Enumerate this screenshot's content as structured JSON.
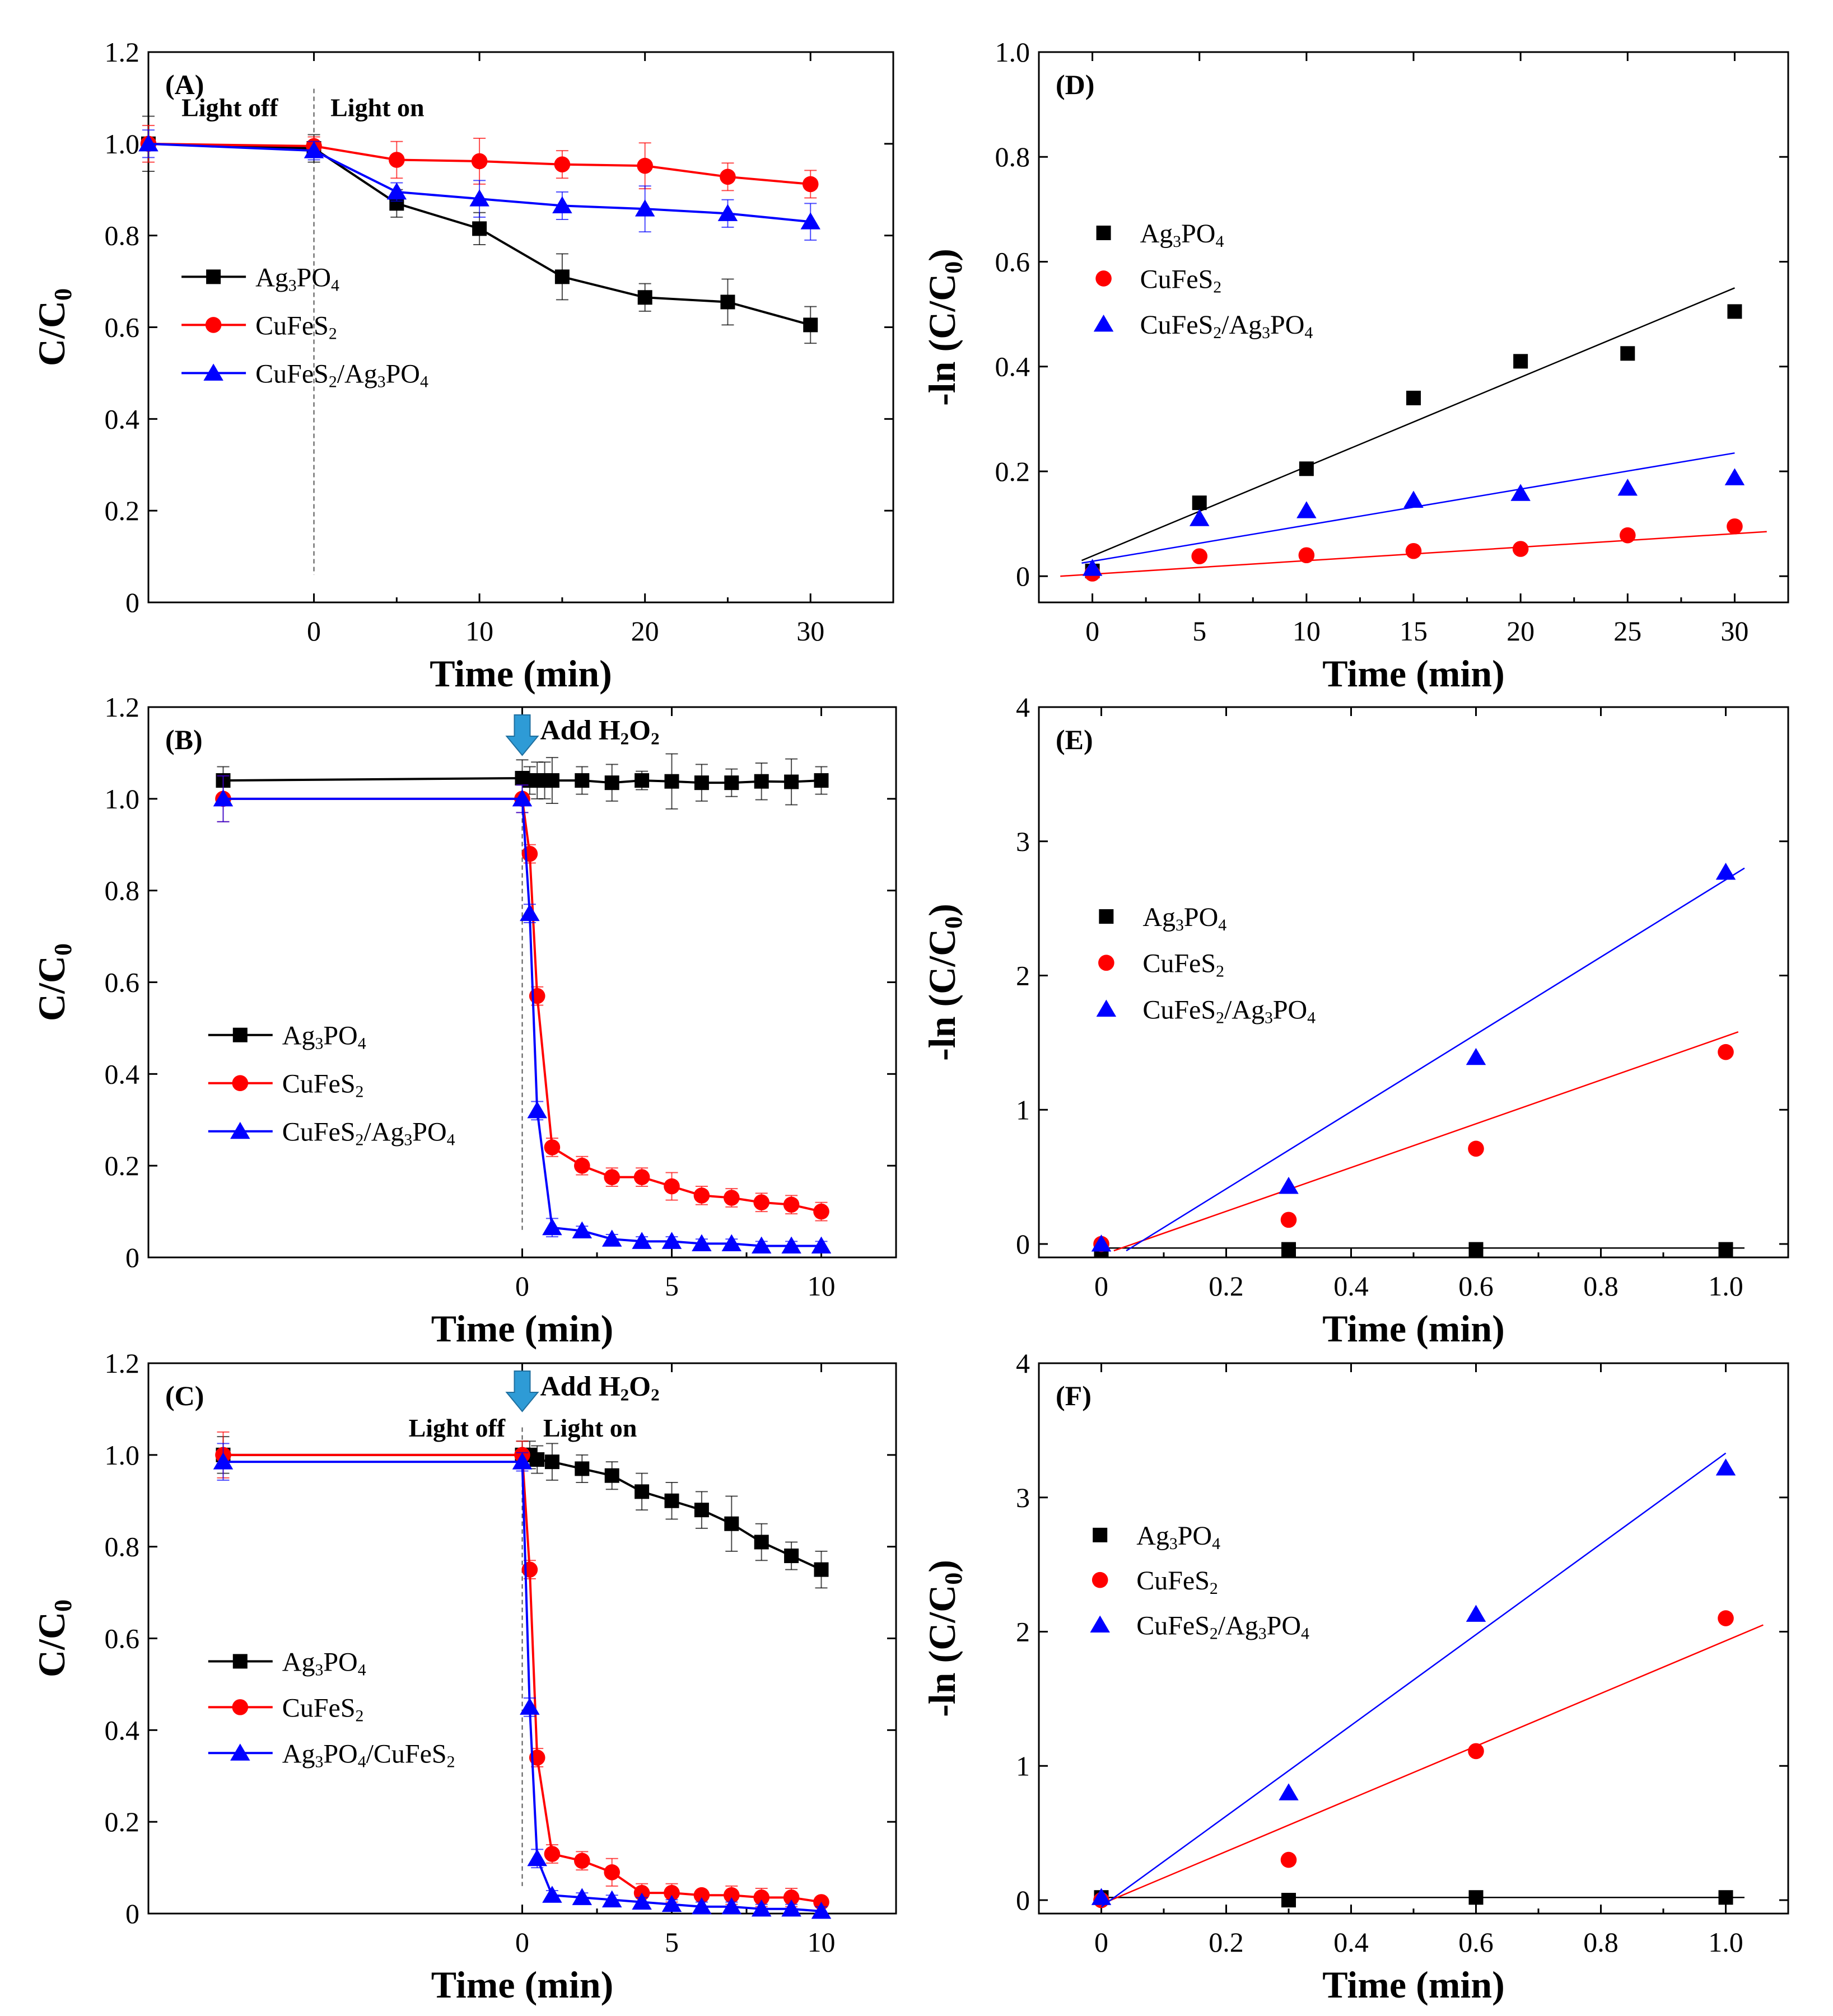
{
  "figure": {
    "description": "Six-panel kinetics figure"
  },
  "chart_data": [
    {
      "id": "A",
      "tag": "(A)",
      "type": "line",
      "xlabel": "Time (min)",
      "ylabel": "C/C0",
      "xlim": [
        -10,
        35
      ],
      "ylim": [
        0,
        1.2
      ],
      "xticks": [
        0,
        10,
        20,
        30
      ],
      "yticks": [
        0,
        0.2,
        0.4,
        0.6,
        0.8,
        1.0,
        1.2
      ],
      "ytick_labels": [
        "0",
        "0.2",
        "0.4",
        "0.6",
        "0.8",
        "1.0",
        "1.2"
      ],
      "divider_x": 0,
      "annotations": [
        {
          "text": "Light off",
          "x": -8,
          "y": 1.06
        },
        {
          "text": "Light on",
          "x": 1,
          "y": 1.06
        }
      ],
      "legend": {
        "position": "middle-left",
        "x": -8,
        "y": 0.71,
        "dy": 0.105
      },
      "series": [
        {
          "name": "Ag3PO4",
          "legend_label": [
            "Ag",
            "3",
            "PO",
            "4"
          ],
          "color": "#000000",
          "marker": "square",
          "x": [
            -10,
            0,
            5,
            10,
            15,
            20,
            25,
            30
          ],
          "y": [
            1.0,
            0.99,
            0.87,
            0.815,
            0.71,
            0.665,
            0.655,
            0.605
          ],
          "err": [
            0.06,
            0.03,
            0.03,
            0.035,
            0.05,
            0.03,
            0.05,
            0.04
          ]
        },
        {
          "name": "CuFeS2",
          "legend_label": [
            "CuFeS",
            "2",
            "",
            ""
          ],
          "color": "#ff0000",
          "marker": "circle",
          "x": [
            -10,
            0,
            5,
            10,
            15,
            20,
            25,
            30
          ],
          "y": [
            1.0,
            0.995,
            0.965,
            0.962,
            0.955,
            0.952,
            0.928,
            0.912
          ],
          "err": [
            0.04,
            0.02,
            0.04,
            0.05,
            0.03,
            0.05,
            0.03,
            0.03
          ]
        },
        {
          "name": "CuFeS2/Ag3PO4",
          "legend_label": [
            "CuFeS",
            "2",
            "/Ag",
            "3",
            "PO",
            "4"
          ],
          "color": "#0000ff",
          "marker": "triangle",
          "x": [
            -10,
            0,
            5,
            10,
            15,
            20,
            25,
            30
          ],
          "y": [
            1.0,
            0.985,
            0.895,
            0.88,
            0.865,
            0.858,
            0.848,
            0.83
          ],
          "err": [
            0.03,
            0.02,
            0.02,
            0.04,
            0.03,
            0.05,
            0.03,
            0.04
          ]
        }
      ]
    },
    {
      "id": "D",
      "tag": "(D)",
      "type": "scatter",
      "xlabel": "Time (min)",
      "ylabel": "-ln (C/C0)",
      "xlim": [
        -2.5,
        32.5
      ],
      "ylim": [
        -0.05,
        1.0
      ],
      "xticks": [
        0,
        5,
        10,
        15,
        20,
        25,
        30
      ],
      "yticks": [
        0,
        0.2,
        0.4,
        0.6,
        0.8,
        1.0
      ],
      "ytick_labels": [
        "0",
        "0.2",
        "0.4",
        "0.6",
        "0.8",
        "1.0"
      ],
      "legend": {
        "position": "top-left",
        "x": 0,
        "y": 0.655,
        "dy": 0.087
      },
      "series": [
        {
          "name": "Ag3PO4",
          "legend_label": [
            "Ag",
            "3",
            "PO",
            "4"
          ],
          "color": "#000000",
          "marker": "square",
          "x": [
            0,
            5,
            10,
            15,
            20,
            25,
            30
          ],
          "y": [
            0.01,
            0.14,
            0.205,
            0.34,
            0.41,
            0.425,
            0.505
          ],
          "fit": [
            [
              -0.5,
              0.03
            ],
            [
              30,
              0.55
            ]
          ]
        },
        {
          "name": "CuFeS2",
          "legend_label": [
            "CuFeS",
            "2",
            "",
            ""
          ],
          "color": "#ff0000",
          "marker": "circle",
          "x": [
            0,
            5,
            10,
            15,
            20,
            25,
            30
          ],
          "y": [
            0.005,
            0.038,
            0.04,
            0.048,
            0.052,
            0.078,
            0.095
          ],
          "fit": [
            [
              -1.5,
              0.0
            ],
            [
              31.5,
              0.085
            ]
          ]
        },
        {
          "name": "CuFeS2/Ag3PO4",
          "legend_label": [
            "CuFeS",
            "2",
            "/Ag",
            "3",
            "PO",
            "4"
          ],
          "color": "#0000ff",
          "marker": "triangle",
          "x": [
            0,
            5,
            10,
            15,
            20,
            25,
            30
          ],
          "y": [
            0.015,
            0.11,
            0.125,
            0.145,
            0.158,
            0.168,
            0.188
          ],
          "fit": [
            [
              -0.5,
              0.025
            ],
            [
              30,
              0.235
            ]
          ]
        }
      ]
    },
    {
      "id": "B",
      "tag": "(B)",
      "type": "line",
      "xlabel": "Time (min)",
      "ylabel": "C/C0",
      "xlim": [
        -12.5,
        12.5
      ],
      "ylim": [
        0,
        1.2
      ],
      "xticks": [
        0,
        5,
        10
      ],
      "yticks": [
        0,
        0.2,
        0.4,
        0.6,
        0.8,
        1.0,
        1.2
      ],
      "ytick_labels": [
        "0",
        "0.2",
        "0.4",
        "0.6",
        "0.8",
        "1.0",
        "1.2"
      ],
      "divider_x": 0,
      "arrow_x": 0,
      "annotations": [
        {
          "text_parts": [
            "Add H",
            "2",
            "O",
            "2"
          ],
          "x": 0.6,
          "y": 1.13
        }
      ],
      "legend": {
        "position": "middle-left",
        "x": -10.5,
        "y": 0.485,
        "dy": 0.105
      },
      "series": [
        {
          "name": "Ag3PO4",
          "legend_label": [
            "Ag",
            "3",
            "PO",
            "4"
          ],
          "color": "#000000",
          "marker": "square",
          "x": [
            -10,
            0,
            0.25,
            0.5,
            0.75,
            1,
            2,
            3,
            4,
            5,
            6,
            7,
            8,
            9,
            10
          ],
          "y": [
            1.04,
            1.045,
            1.04,
            1.04,
            1.04,
            1.04,
            1.04,
            1.035,
            1.04,
            1.038,
            1.035,
            1.035,
            1.038,
            1.037,
            1.04
          ],
          "err": [
            0.03,
            0.04,
            0.03,
            0.04,
            0.04,
            0.05,
            0.03,
            0.04,
            0.02,
            0.06,
            0.04,
            0.03,
            0.04,
            0.05,
            0.03
          ]
        },
        {
          "name": "CuFeS2",
          "legend_label": [
            "CuFeS",
            "2",
            "",
            ""
          ],
          "color": "#ff0000",
          "marker": "circle",
          "x": [
            -10,
            0,
            0.25,
            0.5,
            1,
            2,
            3,
            4,
            5,
            6,
            7,
            8,
            9,
            10
          ],
          "y": [
            1.0,
            1.0,
            0.88,
            0.57,
            0.24,
            0.2,
            0.175,
            0.175,
            0.155,
            0.135,
            0.13,
            0.12,
            0.115,
            0.1
          ],
          "err": [
            0.05,
            0.03,
            0.02,
            0.02,
            0.02,
            0.02,
            0.02,
            0.02,
            0.03,
            0.02,
            0.02,
            0.02,
            0.02,
            0.02
          ]
        },
        {
          "name": "CuFeS2/Ag3PO4",
          "legend_label": [
            "CuFeS",
            "2",
            "/Ag",
            "3",
            "PO",
            "4"
          ],
          "color": "#0000ff",
          "marker": "triangle",
          "x": [
            -10,
            0,
            0.25,
            0.5,
            1,
            2,
            3,
            4,
            5,
            6,
            7,
            8,
            9,
            10
          ],
          "y": [
            1.0,
            1.0,
            0.75,
            0.32,
            0.065,
            0.058,
            0.04,
            0.035,
            0.035,
            0.03,
            0.03,
            0.025,
            0.025,
            0.025
          ],
          "err": [
            0.05,
            0.03,
            0.02,
            0.02,
            0.02,
            0.01,
            0.01,
            0.01,
            0.01,
            0.01,
            0.01,
            0.01,
            0.01,
            0.01
          ]
        }
      ]
    },
    {
      "id": "E",
      "tag": "(E)",
      "type": "scatter",
      "xlabel": "Time (min)",
      "ylabel": "-ln (C/C0)",
      "xlim": [
        -0.1,
        1.1
      ],
      "ylim": [
        -0.1,
        4.0
      ],
      "xticks": [
        0,
        0.2,
        0.4,
        0.6,
        0.8,
        1.0
      ],
      "yticks": [
        0,
        1,
        2,
        3,
        4
      ],
      "xtick_labels": [
        "0",
        "0.2",
        "0.4",
        "0.6",
        "0.8",
        "1.0"
      ],
      "ytick_labels": [
        "0",
        "1",
        "2",
        "3",
        "4"
      ],
      "legend": {
        "position": "middle-left",
        "x": -0.01,
        "y": 2.44,
        "dy": 0.345
      },
      "series": [
        {
          "name": "Ag3PO4",
          "legend_label": [
            "Ag",
            "3",
            "PO",
            "4"
          ],
          "color": "#000000",
          "marker": "square",
          "x": [
            0,
            0.3,
            0.6,
            1.0
          ],
          "y": [
            -0.04,
            -0.04,
            -0.04,
            -0.04
          ],
          "fit": [
            [
              0,
              -0.03
            ],
            [
              1.03,
              -0.03
            ]
          ]
        },
        {
          "name": "CuFeS2",
          "legend_label": [
            "CuFeS",
            "2",
            "",
            ""
          ],
          "color": "#ff0000",
          "marker": "circle",
          "x": [
            0,
            0.3,
            0.6,
            1.0
          ],
          "y": [
            0.0,
            0.18,
            0.71,
            1.43
          ],
          "fit": [
            [
              0.02,
              -0.05
            ],
            [
              1.02,
              1.58
            ]
          ]
        },
        {
          "name": "CuFeS2/Ag3PO4",
          "legend_label": [
            "CuFeS",
            "2",
            "/Ag",
            "3",
            "PO",
            "4"
          ],
          "color": "#0000ff",
          "marker": "triangle",
          "x": [
            0,
            0.3,
            0.6,
            1.0
          ],
          "y": [
            0.0,
            0.43,
            1.39,
            2.77
          ],
          "fit": [
            [
              0.04,
              -0.05
            ],
            [
              1.03,
              2.8
            ]
          ]
        }
      ]
    },
    {
      "id": "C",
      "tag": "(C)",
      "type": "line",
      "xlabel": "Time (min)",
      "ylabel": "C/C0",
      "xlim": [
        -12.5,
        12.5
      ],
      "ylim": [
        0,
        1.2
      ],
      "xticks": [
        0,
        5,
        10
      ],
      "yticks": [
        0,
        0.2,
        0.4,
        0.6,
        0.8,
        1.0,
        1.2
      ],
      "ytick_labels": [
        "0",
        "0.2",
        "0.4",
        "0.6",
        "0.8",
        "1.0",
        "1.2"
      ],
      "divider_x": 0,
      "arrow_x": 0,
      "annotations": [
        {
          "text_parts": [
            "Add H",
            "2",
            "O",
            "2"
          ],
          "x": 0.6,
          "y": 1.13
        },
        {
          "text": "Light off",
          "x": -3.8,
          "y": 1.04
        },
        {
          "text": "Light on",
          "x": 0.7,
          "y": 1.04
        }
      ],
      "legend": {
        "position": "middle-left",
        "x": -10.5,
        "y": 0.55,
        "dy": 0.1
      },
      "series": [
        {
          "name": "Ag3PO4",
          "legend_label": [
            "Ag",
            "3",
            "PO",
            "4"
          ],
          "color": "#000000",
          "marker": "square",
          "x": [
            -10,
            0,
            0.25,
            0.5,
            1,
            2,
            3,
            4,
            5,
            6,
            7,
            8,
            9,
            10
          ],
          "y": [
            1.0,
            1.0,
            1.0,
            0.99,
            0.985,
            0.97,
            0.955,
            0.92,
            0.9,
            0.88,
            0.85,
            0.81,
            0.78,
            0.75
          ],
          "err": [
            0.04,
            0.03,
            0.03,
            0.03,
            0.04,
            0.03,
            0.03,
            0.04,
            0.04,
            0.04,
            0.06,
            0.04,
            0.03,
            0.04
          ]
        },
        {
          "name": "CuFeS2",
          "legend_label": [
            "CuFeS",
            "2",
            "",
            ""
          ],
          "color": "#ff0000",
          "marker": "circle",
          "x": [
            -10,
            0,
            0.25,
            0.5,
            1,
            2,
            3,
            4,
            5,
            6,
            7,
            8,
            9,
            10
          ],
          "y": [
            1.0,
            1.0,
            0.75,
            0.34,
            0.13,
            0.115,
            0.09,
            0.045,
            0.045,
            0.04,
            0.04,
            0.035,
            0.035,
            0.025
          ],
          "err": [
            0.05,
            0.03,
            0.02,
            0.02,
            0.02,
            0.02,
            0.03,
            0.02,
            0.02,
            0.01,
            0.02,
            0.02,
            0.02,
            0.01
          ]
        },
        {
          "name": "Ag3PO4/CuFeS2",
          "legend_label": [
            "Ag",
            "3",
            "PO",
            "4",
            "/CuFeS",
            "2"
          ],
          "color": "#0000ff",
          "marker": "triangle",
          "x": [
            -10,
            0,
            0.25,
            0.5,
            1,
            2,
            3,
            4,
            5,
            6,
            7,
            8,
            9,
            10
          ],
          "y": [
            0.985,
            0.985,
            0.45,
            0.12,
            0.04,
            0.035,
            0.03,
            0.025,
            0.02,
            0.015,
            0.015,
            0.01,
            0.01,
            0.005
          ],
          "err": [
            0.04,
            0.02,
            0.02,
            0.02,
            0.01,
            0.01,
            0.01,
            0.01,
            0.01,
            0.01,
            0.01,
            0.01,
            0.01,
            0.01
          ]
        }
      ]
    },
    {
      "id": "F",
      "tag": "(F)",
      "type": "scatter",
      "xlabel": "Time (min)",
      "ylabel": "-ln (C/C0)",
      "xlim": [
        -0.1,
        1.1
      ],
      "ylim": [
        -0.1,
        4.0
      ],
      "xticks": [
        0,
        0.2,
        0.4,
        0.6,
        0.8,
        1.0
      ],
      "yticks": [
        0,
        1,
        2,
        3,
        4
      ],
      "xtick_labels": [
        "0",
        "0.2",
        "0.4",
        "0.6",
        "0.8",
        "1.0"
      ],
      "ytick_labels": [
        "0",
        "1",
        "2",
        "3",
        "4"
      ],
      "legend": {
        "position": "middle-left",
        "x": -0.02,
        "y": 2.72,
        "dy": 0.335
      },
      "series": [
        {
          "name": "Ag3PO4",
          "legend_label": [
            "Ag",
            "3",
            "PO",
            "4"
          ],
          "color": "#000000",
          "marker": "square",
          "x": [
            0,
            0.3,
            0.6,
            1.0
          ],
          "y": [
            0.02,
            0.0,
            0.02,
            0.02
          ],
          "fit": [
            [
              0,
              0.02
            ],
            [
              1.03,
              0.02
            ]
          ]
        },
        {
          "name": "CuFeS2",
          "legend_label": [
            "CuFeS",
            "2",
            "",
            ""
          ],
          "color": "#ff0000",
          "marker": "circle",
          "x": [
            0,
            0.3,
            0.6,
            1.0
          ],
          "y": [
            0.0,
            0.3,
            1.11,
            2.1
          ],
          "fit": [
            [
              0,
              -0.03
            ],
            [
              1.06,
              2.05
            ]
          ]
        },
        {
          "name": "CuFeS2/Ag3PO4",
          "legend_label": [
            "CuFeS",
            "2",
            "/Ag",
            "3",
            "PO",
            "4"
          ],
          "color": "#0000ff",
          "marker": "triangle",
          "x": [
            0,
            0.3,
            0.6,
            1.0
          ],
          "y": [
            0.02,
            0.8,
            2.13,
            3.22
          ],
          "fit": [
            [
              0,
              -0.05
            ],
            [
              1.0,
              3.33
            ]
          ]
        }
      ]
    }
  ]
}
